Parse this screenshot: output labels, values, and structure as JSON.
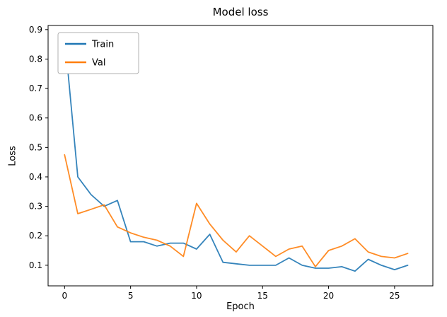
{
  "chart_data": {
    "type": "line",
    "title": "Model loss",
    "xlabel": "Epoch",
    "ylabel": "Loss",
    "grid": false,
    "x": [
      0,
      1,
      2,
      3,
      4,
      5,
      6,
      7,
      8,
      9,
      10,
      11,
      12,
      13,
      14,
      15,
      16,
      17,
      18,
      19,
      20,
      21,
      22,
      23,
      24,
      25,
      26
    ],
    "series": [
      {
        "name": "Train",
        "color": "#1f77b4",
        "values": [
          0.88,
          0.4,
          0.34,
          0.3,
          0.32,
          0.18,
          0.18,
          0.165,
          0.175,
          0.175,
          0.155,
          0.205,
          0.11,
          0.105,
          0.1,
          0.1,
          0.1,
          0.125,
          0.1,
          0.09,
          0.09,
          0.095,
          0.08,
          0.12,
          0.1,
          0.085,
          0.1
        ]
      },
      {
        "name": "Val",
        "color": "#ff7f0e",
        "values": [
          0.475,
          0.275,
          0.29,
          0.305,
          0.23,
          0.21,
          0.195,
          0.185,
          0.165,
          0.13,
          0.31,
          0.24,
          0.185,
          0.145,
          0.2,
          0.165,
          0.13,
          0.155,
          0.165,
          0.095,
          0.15,
          0.165,
          0.19,
          0.145,
          0.13,
          0.125,
          0.14
        ]
      }
    ],
    "xlim": [
      -1.25,
      27.9
    ],
    "ylim": [
      0.03,
      0.914
    ],
    "xticks": [
      0,
      5,
      10,
      15,
      20,
      25
    ],
    "xtick_labels": [
      "0",
      "5",
      "10",
      "15",
      "20",
      "25"
    ],
    "yticks": [
      0.1,
      0.2,
      0.3,
      0.4,
      0.5,
      0.6,
      0.7,
      0.8,
      0.9
    ],
    "ytick_labels": [
      "0.1",
      "0.2",
      "0.3",
      "0.4",
      "0.5",
      "0.6",
      "0.7",
      "0.8",
      "0.9"
    ],
    "legend": {
      "position": "upper left",
      "entries": [
        "Train",
        "Val"
      ]
    },
    "axis_color": "#000000",
    "legend_border_color": "#b0b0b0"
  }
}
